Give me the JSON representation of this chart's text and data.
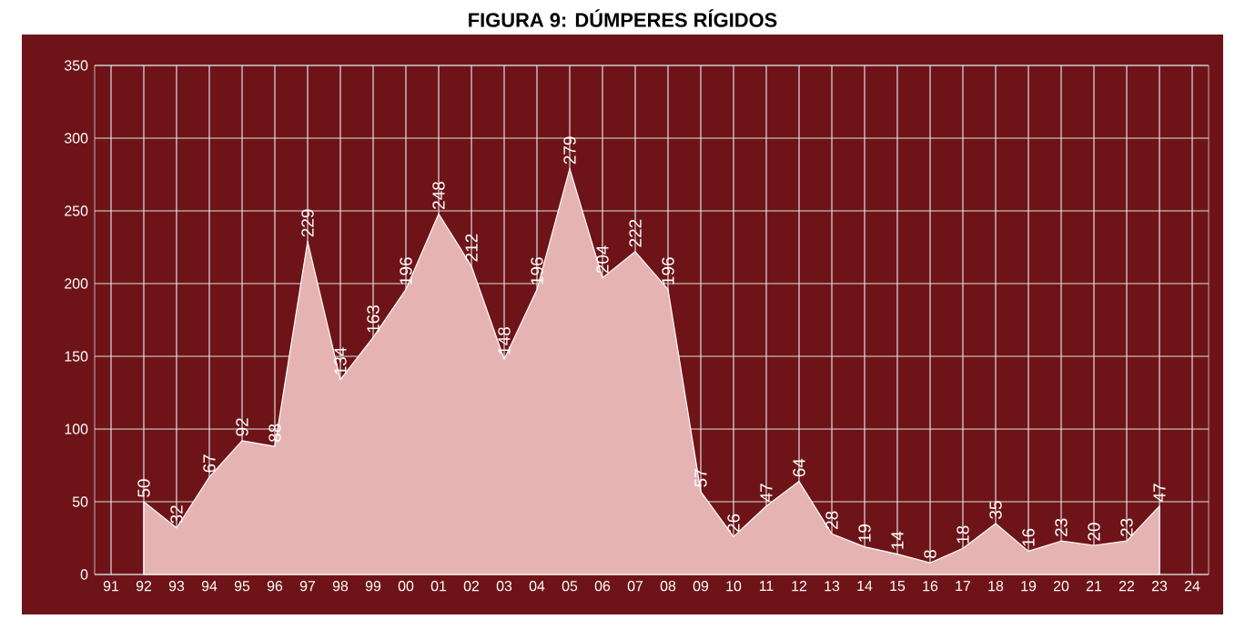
{
  "chart_data": {
    "type": "area",
    "title": "FIGURA 9: DÚMPERES RÍGIDOS",
    "categories": [
      "91",
      "92",
      "93",
      "94",
      "95",
      "96",
      "97",
      "98",
      "99",
      "00",
      "01",
      "02",
      "03",
      "04",
      "05",
      "06",
      "07",
      "08",
      "09",
      "10",
      "11",
      "12",
      "13",
      "14",
      "15",
      "16",
      "17",
      "18",
      "19",
      "20",
      "21",
      "22",
      "23",
      "24"
    ],
    "values": [
      null,
      50,
      32,
      67,
      92,
      88,
      229,
      134,
      163,
      196,
      248,
      212,
      148,
      196,
      279,
      204,
      222,
      196,
      57,
      26,
      47,
      64,
      28,
      19,
      14,
      8,
      18,
      35,
      16,
      23,
      20,
      23,
      47,
      null
    ],
    "color": "#e6b3b3",
    "ylim": [
      0,
      350
    ],
    "yticks": [
      0,
      50,
      100,
      150,
      200,
      250,
      300,
      350
    ],
    "grid": true,
    "data_labels": true
  }
}
